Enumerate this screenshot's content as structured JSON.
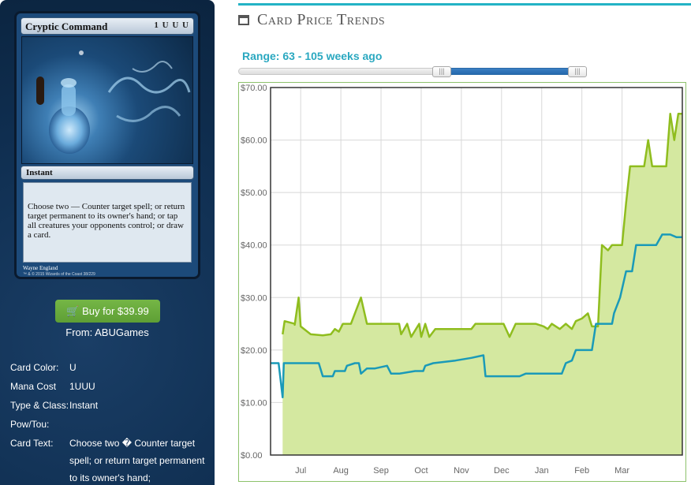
{
  "card": {
    "name": "Cryptic Command",
    "mana_symbols": "1 U U U",
    "type_line": "Instant",
    "rules_text": "Choose two — Counter target spell; or return target permanent to its owner's hand; or tap all creatures your opponents control; or draw a card.",
    "artist": "Wayne England",
    "copyright": "™ & © 2015 Wizards of the Coast 38/229"
  },
  "buy": {
    "label": "Buy for $39.99",
    "from": "From: ABUGames"
  },
  "details": [
    {
      "key": "Card Color:",
      "value": "U"
    },
    {
      "key": "Mana Cost",
      "value": "1UUU"
    },
    {
      "key": "Type & Class:",
      "value": "Instant"
    },
    {
      "key": "Pow/Tou:",
      "value": ""
    },
    {
      "key": "Card Text:",
      "value": "Choose two � Counter target spell; or return target permanent to its owner's hand;"
    }
  ],
  "section": {
    "title": "Card Price Trends",
    "icon": "calendar-icon"
  },
  "range": {
    "label": "Range: 63 - 105 weeks ago",
    "low": 63,
    "high": 105,
    "handle_glyph": "|||"
  },
  "colors": {
    "panel": "#0f2e50",
    "accent": "#23b3c5",
    "green": "#8fbd1e",
    "green_fill": "#d4e8a0",
    "blue": "#1a9ab8",
    "buy": "#6aac3d"
  },
  "chart_data": {
    "type": "line",
    "ylim": [
      0,
      70
    ],
    "yticks": [
      "$0.00",
      "$10.00",
      "$20.00",
      "$30.00",
      "$40.00",
      "$50.00",
      "$60.00",
      "$70.00"
    ],
    "xticks": [
      "Jul",
      "Aug",
      "Sep",
      "Oct",
      "Nov",
      "Dec",
      "Jan",
      "Feb",
      "Mar"
    ],
    "grid": true,
    "series": [
      {
        "style": "area",
        "color": "#8fbd1e",
        "points": [
          [
            0.3,
            23
          ],
          [
            0.35,
            25.5
          ],
          [
            0.6,
            25
          ],
          [
            0.6,
            24.8
          ],
          [
            0.7,
            30
          ],
          [
            0.75,
            24.5
          ],
          [
            1.0,
            23
          ],
          [
            1.3,
            22.8
          ],
          [
            1.5,
            23
          ],
          [
            1.6,
            24
          ],
          [
            1.7,
            23.5
          ],
          [
            1.8,
            25
          ],
          [
            2.0,
            25
          ],
          [
            2.25,
            30
          ],
          [
            2.4,
            25
          ],
          [
            2.6,
            25
          ],
          [
            3.2,
            25
          ],
          [
            3.25,
            23
          ],
          [
            3.4,
            25
          ],
          [
            3.5,
            22.5
          ],
          [
            3.7,
            25
          ],
          [
            3.75,
            22.5
          ],
          [
            3.85,
            25
          ],
          [
            3.95,
            22.5
          ],
          [
            4.1,
            24
          ],
          [
            4.5,
            24
          ],
          [
            5.0,
            24
          ],
          [
            5.1,
            25
          ],
          [
            5.6,
            25
          ],
          [
            5.8,
            25
          ],
          [
            5.95,
            22.5
          ],
          [
            6.1,
            25
          ],
          [
            6.6,
            25
          ],
          [
            6.8,
            24.5
          ],
          [
            6.9,
            24
          ],
          [
            7.0,
            25
          ],
          [
            7.2,
            24
          ],
          [
            7.35,
            25
          ],
          [
            7.5,
            24
          ],
          [
            7.6,
            25.5
          ],
          [
            7.75,
            26
          ],
          [
            7.9,
            27
          ],
          [
            8.0,
            24.5
          ],
          [
            8.15,
            24.5
          ],
          [
            8.25,
            40
          ],
          [
            8.4,
            39
          ],
          [
            8.5,
            40
          ],
          [
            8.75,
            40
          ],
          [
            8.85,
            48
          ],
          [
            8.95,
            55
          ],
          [
            9.1,
            55
          ],
          [
            9.3,
            55
          ],
          [
            9.4,
            60
          ],
          [
            9.5,
            55
          ],
          [
            9.65,
            55
          ],
          [
            9.85,
            55
          ],
          [
            9.95,
            65
          ],
          [
            10.05,
            60
          ],
          [
            10.15,
            65
          ],
          [
            10.25,
            65
          ]
        ]
      },
      {
        "style": "line",
        "color": "#1a9ab8",
        "points": [
          [
            0.0,
            17.5
          ],
          [
            0.2,
            17.5
          ],
          [
            0.3,
            11
          ],
          [
            0.33,
            17.5
          ],
          [
            0.6,
            17.5
          ],
          [
            1.0,
            17.5
          ],
          [
            1.2,
            17.5
          ],
          [
            1.3,
            15
          ],
          [
            1.55,
            15
          ],
          [
            1.6,
            16
          ],
          [
            1.85,
            16
          ],
          [
            1.9,
            17
          ],
          [
            2.1,
            17.5
          ],
          [
            2.2,
            17.5
          ],
          [
            2.25,
            15.5
          ],
          [
            2.4,
            16.5
          ],
          [
            2.6,
            16.5
          ],
          [
            2.9,
            17
          ],
          [
            3.0,
            15.5
          ],
          [
            3.2,
            15.5
          ],
          [
            3.6,
            16
          ],
          [
            3.8,
            16
          ],
          [
            3.85,
            17
          ],
          [
            4.05,
            17.5
          ],
          [
            4.6,
            18
          ],
          [
            5.0,
            18.5
          ],
          [
            5.3,
            19
          ],
          [
            5.35,
            15
          ],
          [
            5.7,
            15
          ],
          [
            6.2,
            15
          ],
          [
            6.35,
            15.5
          ],
          [
            7.0,
            15.5
          ],
          [
            7.25,
            15.5
          ],
          [
            7.35,
            17.5
          ],
          [
            7.5,
            18
          ],
          [
            7.6,
            20
          ],
          [
            8.0,
            20
          ],
          [
            8.1,
            25
          ],
          [
            8.3,
            25
          ],
          [
            8.5,
            25
          ],
          [
            8.55,
            27
          ],
          [
            8.7,
            30
          ],
          [
            8.85,
            35
          ],
          [
            9.0,
            35
          ],
          [
            9.1,
            40
          ],
          [
            9.3,
            40
          ],
          [
            9.45,
            40
          ],
          [
            9.6,
            40
          ],
          [
            9.75,
            42
          ],
          [
            9.95,
            42
          ],
          [
            10.1,
            41.5
          ],
          [
            10.25,
            41.5
          ]
        ]
      }
    ]
  }
}
